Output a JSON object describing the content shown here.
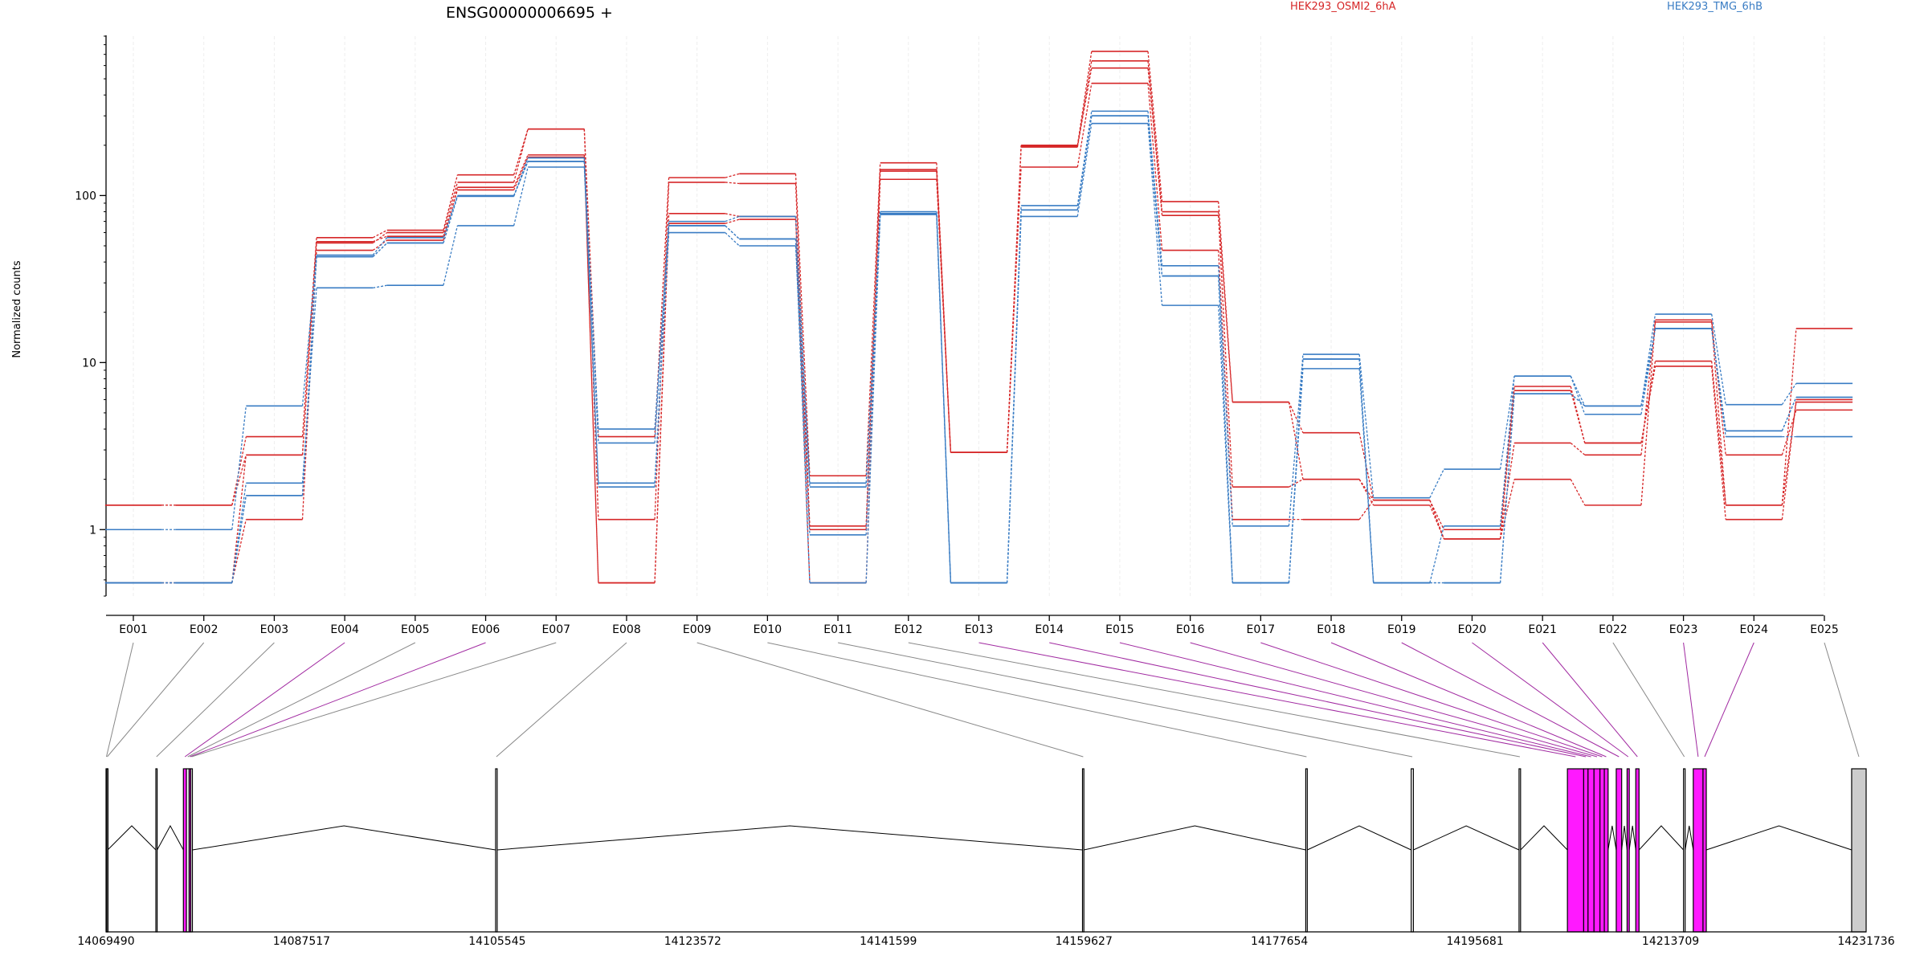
{
  "chart_data": {
    "type": "line",
    "title": "ENSG00000006695 +",
    "xlabel": "",
    "ylabel": "Normalized counts",
    "y_scale": "log",
    "ylim": [
      0.4,
      900
    ],
    "y_ticks": [
      1,
      10,
      100
    ],
    "y_tick_labels": [
      "1",
      "10",
      "100"
    ],
    "categories": [
      "E001",
      "E002",
      "E003",
      "E004",
      "E005",
      "E006",
      "E007",
      "E008",
      "E009",
      "E010",
      "E011",
      "E012",
      "E013",
      "E014",
      "E015",
      "E016",
      "E017",
      "E018",
      "E019",
      "E020",
      "E021",
      "E022",
      "E023",
      "E024",
      "E025"
    ],
    "legend": [
      {
        "label": "HEK293_OSMI2_6hA",
        "color": "#d62728"
      },
      {
        "label": "HEK293_TMG_6hB",
        "color": "#3a7dc4"
      }
    ],
    "series": [
      {
        "group": "HEK293_OSMI2_6hA",
        "color": "#d62728",
        "values": [
          1.4,
          1.4,
          3.6,
          56,
          62,
          133,
          250,
          3.6,
          128,
          135,
          2.1,
          157,
          2.9,
          200,
          730,
          92,
          5.8,
          3.8,
          1.5,
          1.0,
          7.2,
          3.3,
          10.2,
          1.4,
          16
        ]
      },
      {
        "group": "HEK293_OSMI2_6hA",
        "color": "#d62728",
        "values": [
          0.48,
          0.48,
          2.8,
          52,
          60,
          120,
          250,
          1.15,
          120,
          118,
          1.05,
          140,
          2.9,
          195,
          640,
          76,
          1.8,
          2.0,
          1.5,
          0.88,
          6.8,
          3.3,
          9.5,
          1.15,
          6.0
        ]
      },
      {
        "group": "HEK293_OSMI2_6hA",
        "color": "#d62728",
        "values": [
          0.48,
          0.48,
          1.15,
          47,
          54,
          112,
          175,
          0.48,
          78,
          75,
          0.48,
          125,
          2.9,
          148,
          470,
          47,
          1.15,
          1.15,
          1.5,
          0.88,
          3.3,
          2.8,
          18,
          2.8,
          5.2
        ]
      },
      {
        "group": "HEK293_OSMI2_6hA",
        "color": "#d62728",
        "values": [
          1.4,
          1.4,
          2.8,
          53,
          57,
          108,
          170,
          0.48,
          68,
          72,
          1.0,
          143,
          2.9,
          198,
          580,
          80,
          5.8,
          2.0,
          1.4,
          0.88,
          2.0,
          1.4,
          17.5,
          1.4,
          5.8
        ]
      },
      {
        "group": "HEK293_TMG_6hB",
        "color": "#3a7dc4",
        "values": [
          1.0,
          1.0,
          5.5,
          44,
          56,
          100,
          160,
          4.0,
          70,
          75,
          1.9,
          80,
          0.48,
          87,
          320,
          38,
          1.05,
          11.2,
          1.55,
          2.3,
          8.3,
          5.5,
          19.5,
          5.6,
          7.5
        ]
      },
      {
        "group": "HEK293_TMG_6hB",
        "color": "#3a7dc4",
        "values": [
          0.48,
          0.48,
          1.9,
          28,
          29,
          66,
          148,
          1.9,
          60,
          50,
          0.93,
          78,
          0.48,
          75,
          270,
          22,
          0.48,
          9.2,
          0.48,
          1.05,
          8.3,
          4.9,
          16,
          3.6,
          3.6
        ]
      },
      {
        "group": "HEK293_TMG_6hB",
        "color": "#3a7dc4",
        "values": [
          0.48,
          0.48,
          1.6,
          43,
          52,
          99,
          160,
          1.8,
          66,
          55,
          1.8,
          77,
          0.48,
          82,
          300,
          33,
          0.48,
          10.5,
          0.48,
          0.48,
          6.5,
          5.5,
          16,
          3.9,
          6.2
        ]
      },
      {
        "group": "HEK293_TMG_6hB",
        "color": "#3a7dc4",
        "values": [
          0.48,
          0.48,
          1.6,
          43,
          52,
          99,
          168,
          3.3,
          66,
          55,
          0.48,
          77,
          0.48,
          82,
          300,
          33,
          0.48,
          10.5,
          0.48,
          0.48,
          6.5,
          5.5,
          16,
          3.9,
          6.2
        ]
      }
    ],
    "gene_model": {
      "coord_min": 14069490,
      "coord_max": 14231736,
      "coord_ticks": [
        14069490,
        14087517,
        14105545,
        14123572,
        14141599,
        14159627,
        14177654,
        14195681,
        14213709,
        14231736
      ],
      "coord_tick_labels": [
        "14069490",
        "14087517",
        "14105545",
        "14123572",
        "14141599",
        "14159627",
        "14177654",
        "14195681",
        "14213709",
        "14231736"
      ],
      "highlight_color": "#ff19ff",
      "plain_exon_color": "#ffffff",
      "noncoding_exon_color": "#cccccc",
      "exons": [
        {
          "id": "E001",
          "start": 14069490,
          "end": 14069560,
          "highlight": false
        },
        {
          "id": "E002",
          "start": 14069560,
          "end": 14069640,
          "highlight": false
        },
        {
          "id": "E003",
          "start": 14074080,
          "end": 14074200,
          "highlight": false
        },
        {
          "id": "E004",
          "start": 14076620,
          "end": 14076900,
          "highlight": true
        },
        {
          "id": "E005",
          "start": 14076900,
          "end": 14077150,
          "highlight": false
        },
        {
          "id": "E006",
          "start": 14077150,
          "end": 14077300,
          "highlight": true
        },
        {
          "id": "E007",
          "start": 14077300,
          "end": 14077450,
          "highlight": false
        },
        {
          "id": "E008",
          "start": 14105400,
          "end": 14105545,
          "highlight": false
        },
        {
          "id": "E009",
          "start": 14159500,
          "end": 14159627,
          "highlight": false
        },
        {
          "id": "E010",
          "start": 14180080,
          "end": 14180220,
          "highlight": false
        },
        {
          "id": "E011",
          "start": 14189800,
          "end": 14190000,
          "highlight": false
        },
        {
          "id": "E012",
          "start": 14199740,
          "end": 14199880,
          "highlight": false
        },
        {
          "id": "E013",
          "start": 14204200,
          "end": 14205700,
          "highlight": true
        },
        {
          "id": "E014",
          "start": 14205700,
          "end": 14206100,
          "highlight": true
        },
        {
          "id": "E015",
          "start": 14206100,
          "end": 14206650,
          "highlight": true
        },
        {
          "id": "E016",
          "start": 14206650,
          "end": 14207200,
          "highlight": true
        },
        {
          "id": "E017",
          "start": 14207200,
          "end": 14207600,
          "highlight": true
        },
        {
          "id": "E018",
          "start": 14207600,
          "end": 14207950,
          "highlight": true
        },
        {
          "id": "E019",
          "start": 14208700,
          "end": 14209200,
          "highlight": true
        },
        {
          "id": "E020",
          "start": 14209700,
          "end": 14209900,
          "highlight": true
        },
        {
          "id": "E021",
          "start": 14210500,
          "end": 14210800,
          "highlight": true
        },
        {
          "id": "E022",
          "start": 14214900,
          "end": 14215050,
          "highlight": false
        },
        {
          "id": "E023",
          "start": 14215800,
          "end": 14216700,
          "highlight": true
        },
        {
          "id": "E024",
          "start": 14216700,
          "end": 14217000,
          "highlight": true
        },
        {
          "id": "E025",
          "start": 14230400,
          "end": 14231736,
          "highlight": false,
          "noncoding": true
        }
      ]
    }
  }
}
